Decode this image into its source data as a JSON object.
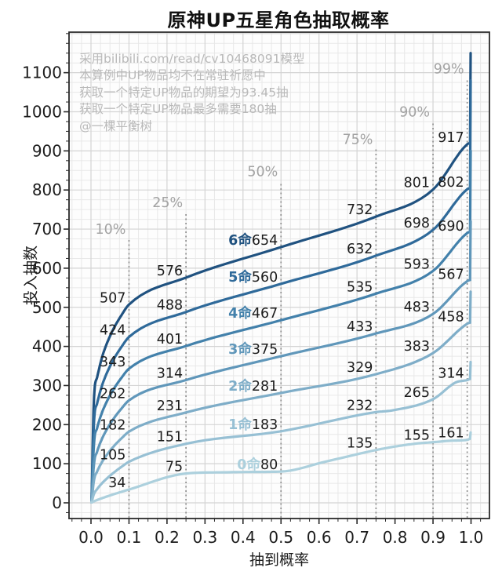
{
  "title": "原神UP五星角色抽取概率",
  "annotation_lines": [
    "采用bilibili.com/read/cv10468091模型",
    "本算例中UP物品均不在常驻祈愿中",
    "获取一个特定UP物品的期望为93.45抽",
    "获取一个特定UP物品最多需要180抽",
    "@一棵平衡树"
  ],
  "chart_data": {
    "type": "line",
    "title": "原神UP五星角色抽取概率",
    "xlabel": "抽到概率",
    "ylabel": "投入抽数",
    "xlim": [
      -0.058,
      1.048
    ],
    "ylim": [
      -40,
      1204
    ],
    "grid": "major+minor",
    "x_ticks": [
      "0.0",
      "0.1",
      "0.2",
      "0.3",
      "0.4",
      "0.5",
      "0.6",
      "0.7",
      "0.8",
      "0.9",
      "1.0"
    ],
    "y_ticks": [
      "0",
      "100",
      "200",
      "300",
      "400",
      "500",
      "600",
      "700",
      "800",
      "900",
      "1000",
      "1100"
    ],
    "quantiles": {
      "p": [
        0.1,
        0.25,
        0.5,
        0.75,
        0.9,
        0.99
      ],
      "labels": [
        "10%",
        "25%",
        "50%",
        "75%",
        "90%",
        "99%"
      ],
      "label_v": [
        688,
        756,
        836,
        918,
        988,
        1098
      ]
    },
    "series": [
      {
        "name": "6命",
        "color": "#205280",
        "values": [
          507,
          576,
          654,
          732,
          801,
          917
        ],
        "draw_peak": 1150,
        "knee_exp": 0.25,
        "extra": []
      },
      {
        "name": "5命",
        "color": "#2f6a9a",
        "values": [
          424,
          488,
          560,
          632,
          698,
          802
        ],
        "draw_peak": 1080,
        "knee_exp": 0.28,
        "extra": []
      },
      {
        "name": "4命",
        "color": "#4381ab",
        "values": [
          343,
          401,
          467,
          535,
          593,
          690
        ],
        "draw_peak": 900,
        "knee_exp": 0.32,
        "extra": []
      },
      {
        "name": "3命",
        "color": "#6097ba",
        "values": [
          262,
          314,
          375,
          433,
          483,
          567
        ],
        "draw_peak": 720,
        "knee_exp": 0.38,
        "extra": []
      },
      {
        "name": "2命",
        "color": "#7eadc8",
        "values": [
          182,
          231,
          281,
          329,
          383,
          458
        ],
        "draw_peak": 540,
        "knee_exp": 0.45,
        "extra": []
      },
      {
        "name": "1命",
        "color": "#97c0d4",
        "values": [
          105,
          151,
          183,
          232,
          265,
          314
        ],
        "draw_peak": 360,
        "knee_exp": 0.6,
        "extra": [
          [
            0.79,
            236
          ],
          [
            0.96,
            308
          ]
        ]
      },
      {
        "name": "0命",
        "color": "#acd0dd",
        "values": [
          34,
          75,
          80,
          135,
          155,
          161
        ],
        "draw_peak": 180,
        "knee_exp": 0.85,
        "extra": [
          [
            0.35,
            78
          ],
          [
            0.43,
            79
          ],
          [
            0.62,
            106
          ],
          [
            0.8,
            144
          ],
          [
            0.86,
            152
          ],
          [
            0.95,
            159
          ]
        ]
      }
    ],
    "annotations": [
      "采用bilibili.com/read/cv10468091模型",
      "本算例中UP物品均不在常驻祈愿中",
      "获取一个特定UP物品的期望为93.45抽",
      "获取一个特定UP物品最多需要180抽",
      "@一棵平衡树"
    ]
  },
  "style": {
    "grid_minor": "#e8e8e8",
    "grid_major": "#d4d4d4",
    "spine": "#2a2a2a",
    "dashed_line": "#8f8f8f",
    "quantile_label": "#a3a3a3",
    "data_label": "#1c1c1c",
    "tick_label": "#1c1c1c"
  }
}
